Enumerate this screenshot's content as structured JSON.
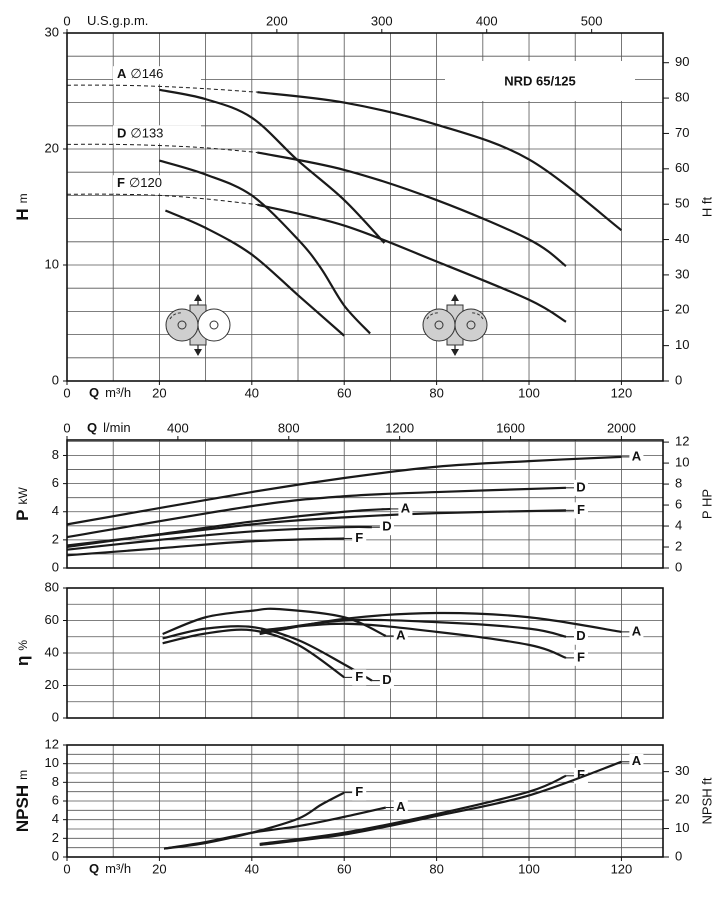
{
  "chart_data": [
    {
      "type": "line",
      "title": "NRD 65/125",
      "ylabel": "H",
      "yunit": "m",
      "y2label": "H ft",
      "xlabel": "Q",
      "xunit": "m³/h",
      "x2unit": "U.S.g.p.m.",
      "color": "#1a1a1a",
      "xlim": [
        0,
        129
      ],
      "xticks": [
        0,
        20,
        40,
        60,
        80,
        100,
        120
      ],
      "x2lim": [
        0,
        568
      ],
      "x2ticks": [
        0,
        200,
        300,
        400,
        500
      ],
      "ylim": [
        0,
        30
      ],
      "yticks": [
        0,
        10,
        20,
        30
      ],
      "y2lim": [
        0,
        98.4
      ],
      "y2ticks": [
        0,
        10,
        20,
        30,
        40,
        50,
        60,
        70,
        80,
        90
      ],
      "xgrid": [
        10,
        20,
        30,
        40,
        50,
        60,
        70,
        80,
        90,
        100,
        110,
        120
      ],
      "ygrid": [
        2,
        4,
        6,
        8,
        10,
        12,
        14,
        16,
        18,
        20,
        22,
        24,
        26,
        28
      ],
      "series": [
        {
          "name": "A",
          "diameter": "∅146",
          "dash": true,
          "x": [
            0,
            10,
            20,
            30,
            41.2
          ],
          "values": [
            25.5,
            25.5,
            25.4,
            25.2,
            24.9
          ]
        },
        {
          "name": "D",
          "diameter": "∅133",
          "dash": true,
          "x": [
            0,
            10,
            20,
            30,
            41.2
          ],
          "values": [
            20.4,
            20.4,
            20.3,
            20.1,
            19.7
          ]
        },
        {
          "name": "F",
          "diameter": "∅120",
          "dash": true,
          "x": [
            0,
            10,
            20,
            30,
            41.2
          ],
          "values": [
            16.1,
            16.1,
            16.0,
            15.7,
            15.2
          ]
        },
        {
          "x": [
            20,
            30,
            40,
            50,
            60,
            68.7
          ],
          "values": [
            25.1,
            24.3,
            22.7,
            19.0,
            15.6,
            11.9
          ]
        },
        {
          "x": [
            20,
            30,
            40,
            50,
            55,
            60,
            65.6
          ],
          "values": [
            19.0,
            17.8,
            16.0,
            12.2,
            9.7,
            6.5,
            4.1
          ]
        },
        {
          "x": [
            21.3,
            30,
            40,
            50,
            60
          ],
          "values": [
            14.7,
            13.2,
            10.9,
            7.4,
            3.9
          ]
        },
        {
          "x": [
            41.2,
            60,
            80,
            100,
            120
          ],
          "values": [
            24.9,
            24.0,
            22.1,
            19.1,
            13.0
          ]
        },
        {
          "x": [
            41.2,
            60,
            80,
            100,
            108
          ],
          "values": [
            19.7,
            18.2,
            15.6,
            12.2,
            9.9
          ]
        },
        {
          "x": [
            41.2,
            60,
            80,
            100,
            108
          ],
          "values": [
            15.2,
            13.4,
            10.3,
            7.0,
            5.1
          ]
        }
      ]
    },
    {
      "type": "line",
      "ylabel": "P",
      "yunit": "kW",
      "y2label": "P HP",
      "x2label": "Q",
      "x2unit": "l/min",
      "color": "#1a1a1a",
      "xlim": [
        0,
        129
      ],
      "x2lim": [
        0,
        2150
      ],
      "x2ticks": [
        0,
        400,
        800,
        1200,
        1600,
        2000
      ],
      "ylim": [
        0,
        9.1
      ],
      "yticks": [
        0,
        2,
        4,
        6,
        8
      ],
      "y2lim": [
        0,
        12.2
      ],
      "y2ticks": [
        0,
        2,
        4,
        6,
        8,
        10,
        12
      ],
      "xgrid": [
        10,
        20,
        30,
        40,
        50,
        60,
        70,
        80,
        90,
        100,
        110,
        120
      ],
      "ygrid": [
        1,
        2,
        3,
        4,
        5,
        6,
        7,
        8,
        9
      ],
      "series": [
        {
          "name": "A",
          "x": [
            0,
            40,
            60,
            80,
            100,
            120
          ],
          "values": [
            3.1,
            5.4,
            6.4,
            7.2,
            7.6,
            7.9
          ]
        },
        {
          "name": "D",
          "x": [
            0,
            40,
            60,
            80,
            108
          ],
          "values": [
            2.2,
            4.4,
            5.1,
            5.4,
            5.7
          ]
        },
        {
          "name": "F",
          "x": [
            0,
            40,
            60,
            80,
            108
          ],
          "values": [
            1.6,
            3.1,
            3.6,
            3.9,
            4.1
          ]
        },
        {
          "name": "A",
          "x": [
            0,
            20,
            40,
            60,
            70
          ],
          "values": [
            1.5,
            2.4,
            3.3,
            4.0,
            4.2
          ]
        },
        {
          "name": "D",
          "x": [
            0,
            20,
            40,
            60,
            66
          ],
          "values": [
            1.3,
            2.0,
            2.6,
            2.9,
            2.9
          ]
        },
        {
          "name": "F",
          "x": [
            0,
            20,
            40,
            60
          ],
          "values": [
            0.9,
            1.4,
            1.9,
            2.1
          ]
        }
      ]
    },
    {
      "type": "line",
      "ylabel": "η",
      "yunit": "%",
      "color": "#1a1a1a",
      "xlim": [
        0,
        129
      ],
      "ylim": [
        0,
        80
      ],
      "yticks": [
        0,
        20,
        40,
        60,
        80
      ],
      "xgrid": [
        10,
        20,
        30,
        40,
        50,
        60,
        70,
        80,
        90,
        100,
        110,
        120
      ],
      "ygrid": [
        10,
        20,
        30,
        40,
        50,
        60,
        70
      ],
      "series": [
        {
          "name": "A",
          "x": [
            20.7,
            30,
            40,
            46,
            60,
            69
          ],
          "values": [
            51.7,
            62,
            66,
            67,
            62,
            50.5
          ]
        },
        {
          "name": "D",
          "x": [
            20.7,
            30,
            40,
            50,
            60,
            66
          ],
          "values": [
            49,
            55,
            56,
            48,
            33,
            23
          ]
        },
        {
          "name": "F",
          "x": [
            20.7,
            30,
            40,
            50,
            60
          ],
          "values": [
            46,
            52,
            54,
            45,
            25
          ]
        },
        {
          "name": "A",
          "x": [
            41.7,
            60,
            80,
            100,
            120
          ],
          "values": [
            51.7,
            61,
            64.6,
            62,
            53
          ]
        },
        {
          "name": "D",
          "x": [
            41.7,
            60,
            80,
            100,
            108
          ],
          "values": [
            53,
            60,
            59,
            55,
            50
          ]
        },
        {
          "name": "F",
          "x": [
            42,
            60,
            80,
            100,
            108
          ],
          "values": [
            54,
            58,
            53,
            45,
            37
          ]
        }
      ]
    },
    {
      "type": "line",
      "ylabel": "NPSH",
      "yunit": "m",
      "y2label": "NPSH ft",
      "xlabel": "Q",
      "xunit": "m³/h",
      "color": "#1a1a1a",
      "xlim": [
        0,
        129
      ],
      "xticks": [
        0,
        20,
        40,
        60,
        80,
        100,
        120
      ],
      "ylim": [
        0,
        12
      ],
      "yticks": [
        0,
        2,
        4,
        6,
        8,
        10,
        12
      ],
      "y2lim": [
        0,
        39.37
      ],
      "y2ticks": [
        0,
        10,
        20,
        30
      ],
      "xgrid": [
        10,
        20,
        30,
        40,
        50,
        60,
        70,
        80,
        90,
        100,
        110,
        120
      ],
      "ygrid": [
        1,
        2,
        3,
        4,
        5,
        6,
        7,
        8,
        9,
        10,
        11
      ],
      "series": [
        {
          "name": "F",
          "x": [
            21,
            30,
            40,
            50,
            55,
            60
          ],
          "values": [
            0.9,
            1.5,
            2.6,
            4.1,
            5.6,
            6.9
          ]
        },
        {
          "name": "A",
          "x": [
            21,
            30,
            40,
            50,
            60,
            69
          ],
          "values": [
            0.9,
            1.6,
            2.6,
            3.3,
            4.3,
            5.3
          ]
        },
        {
          "name": "F",
          "x": [
            41.7,
            60,
            80,
            100,
            108
          ],
          "values": [
            1.4,
            2.6,
            4.6,
            7.0,
            8.7
          ]
        },
        {
          "name": "A",
          "x": [
            41.7,
            60,
            80,
            100,
            120
          ],
          "values": [
            1.3,
            2.4,
            4.4,
            6.6,
            10.2
          ]
        }
      ]
    }
  ]
}
